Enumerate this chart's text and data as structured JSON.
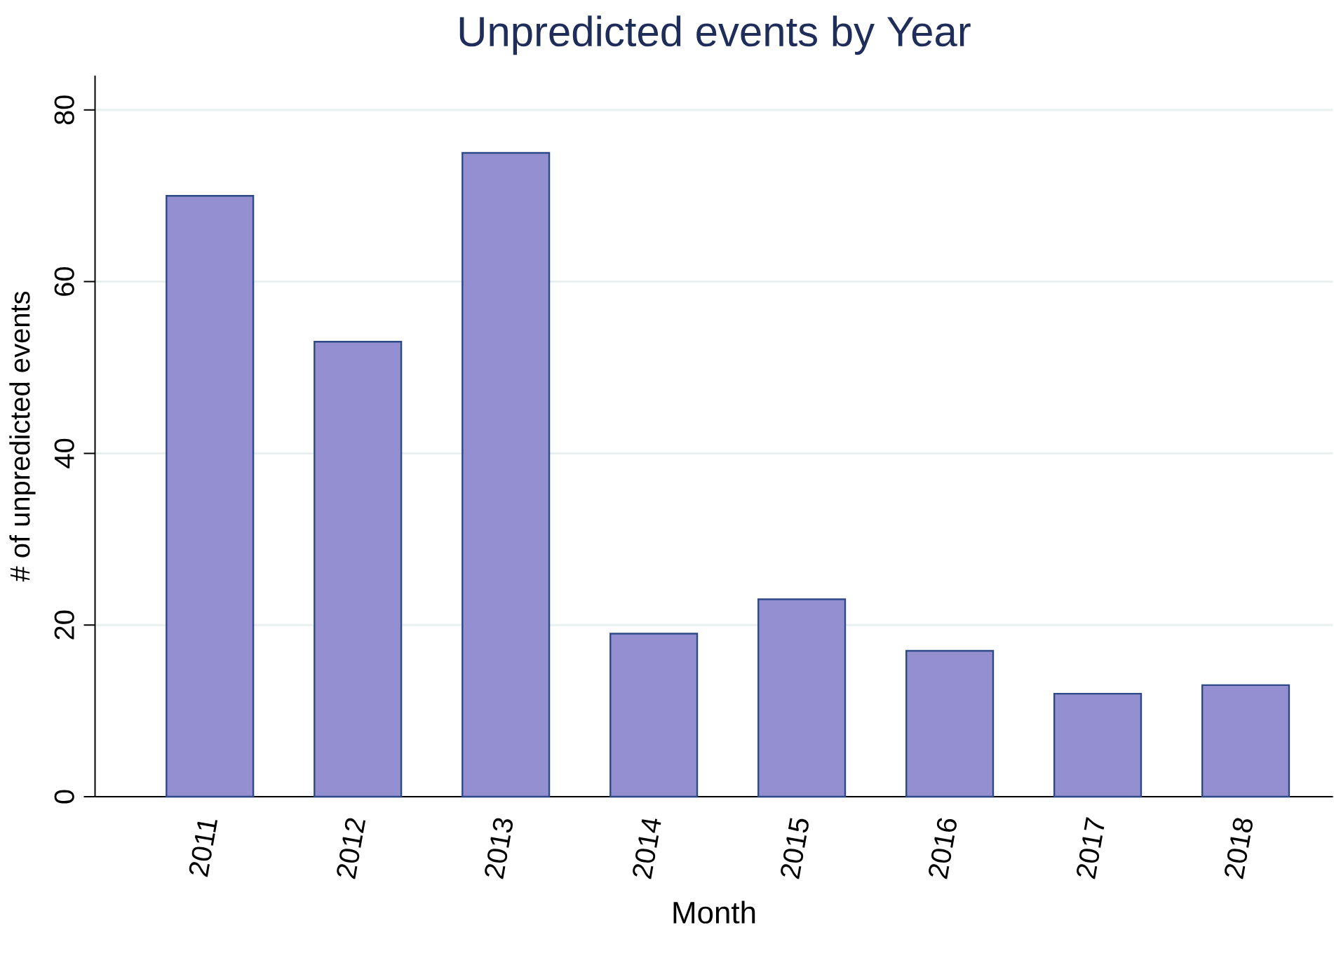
{
  "chart_data": {
    "type": "bar",
    "title": "Unpredicted events by Year",
    "xlabel": "Month",
    "ylabel": "# of unpredicted events",
    "categories": [
      "2011",
      "2012",
      "2013",
      "2014",
      "2015",
      "2016",
      "2017",
      "2018"
    ],
    "values": [
      70,
      53,
      75,
      19,
      23,
      17,
      12,
      13
    ],
    "color": "#938fd0",
    "ylim": [
      0,
      84
    ],
    "yticks": [
      0,
      20,
      40,
      60,
      80
    ],
    "grid": "y"
  }
}
